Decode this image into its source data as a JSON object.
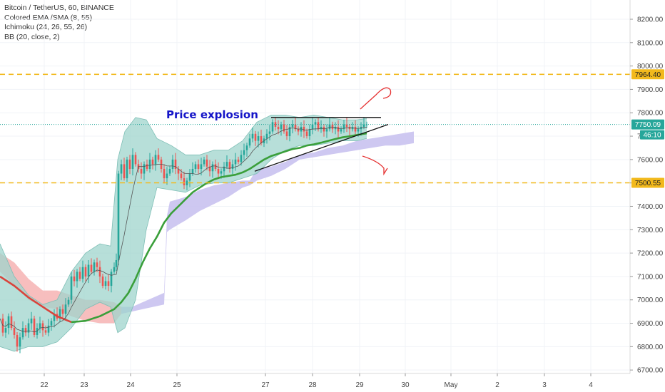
{
  "header": {
    "symbol": "Bitcoin / TetherUS, 60, BINANCE",
    "indicators": [
      "Colored EMA /SMA (8, 55)",
      "Ichimoku (24, 26, 55, 26)",
      "BB (20, close, 2)"
    ]
  },
  "annotation": {
    "text": "Price explosion"
  },
  "colors": {
    "bb_fill": "#9fd4cc",
    "cloud_bull": "#c9c2ef",
    "cloud_bear": "#f6b7b7",
    "ema_bull": "#3a9f3a",
    "ema_bear": "#d9443c",
    "candle_up": "#26a69a",
    "candle_down": "#ef5350",
    "level_line": "#f2b91c",
    "current_price": "#26a69a",
    "annotation": "#1414c8",
    "hand_drawn": "#e53030"
  },
  "chart_data": {
    "type": "candlestick",
    "symbol": "BTCUSDT",
    "timeframe": "60",
    "y_range": [
      6680,
      8260
    ],
    "y_ticks": [
      "8200.00",
      "8100.00",
      "8000.00",
      "7900.00",
      "7800.00",
      "7700.00",
      "7600.00",
      "7500.00",
      "7400.00",
      "7300.00",
      "7200.00",
      "7100.00",
      "7000.00",
      "6900.00",
      "6800.00",
      "6700.00"
    ],
    "x_ticks": [
      "22",
      "23",
      "24",
      "25",
      "27",
      "28",
      "29",
      "30",
      "May",
      "2",
      "3",
      "4"
    ],
    "horizontal_levels": [
      {
        "price": 7964.4,
        "label": "7964.40"
      },
      {
        "price": 7500.55,
        "label": "7500.55"
      }
    ],
    "current_price": {
      "price": 7750.09,
      "label": "7750.09",
      "countdown": "46:10"
    },
    "price_path": [
      [
        0,
        6920
      ],
      [
        4,
        6860
      ],
      [
        8,
        6880
      ],
      [
        12,
        6930
      ],
      [
        16,
        6880
      ],
      [
        20,
        6850
      ],
      [
        24,
        6800
      ],
      [
        28,
        6840
      ],
      [
        32,
        6880
      ],
      [
        36,
        6860
      ],
      [
        40,
        6900
      ],
      [
        44,
        6920
      ],
      [
        48,
        6850
      ],
      [
        52,
        6880
      ],
      [
        56,
        6900
      ],
      [
        60,
        6870
      ],
      [
        64,
        6860
      ],
      [
        68,
        6890
      ],
      [
        72,
        6910
      ],
      [
        76,
        6940
      ],
      [
        80,
        6920
      ],
      [
        84,
        6960
      ],
      [
        88,
        6940
      ],
      [
        92,
        6980
      ],
      [
        96,
        7000
      ],
      [
        100,
        7100
      ],
      [
        104,
        7080
      ],
      [
        108,
        7120
      ],
      [
        112,
        7090
      ],
      [
        116,
        7140
      ],
      [
        120,
        7100
      ],
      [
        124,
        7150
      ],
      [
        128,
        7120
      ],
      [
        132,
        7160
      ],
      [
        136,
        7140
      ],
      [
        140,
        7100
      ],
      [
        144,
        7060
      ],
      [
        148,
        7080
      ],
      [
        152,
        7060
      ],
      [
        156,
        7120
      ],
      [
        160,
        7140
      ],
      [
        163,
        7170
      ],
      [
        166,
        7540
      ],
      [
        170,
        7580
      ],
      [
        174,
        7520
      ],
      [
        178,
        7600
      ],
      [
        182,
        7560
      ],
      [
        186,
        7620
      ],
      [
        190,
        7580
      ],
      [
        194,
        7560
      ],
      [
        198,
        7540
      ],
      [
        202,
        7580
      ],
      [
        206,
        7560
      ],
      [
        210,
        7600
      ],
      [
        214,
        7580
      ],
      [
        218,
        7620
      ],
      [
        222,
        7600
      ],
      [
        226,
        7560
      ],
      [
        230,
        7520
      ],
      [
        234,
        7540
      ],
      [
        238,
        7560
      ],
      [
        242,
        7600
      ],
      [
        246,
        7560
      ],
      [
        250,
        7540
      ],
      [
        254,
        7520
      ],
      [
        258,
        7490
      ],
      [
        262,
        7510
      ],
      [
        266,
        7540
      ],
      [
        270,
        7560
      ],
      [
        274,
        7580
      ],
      [
        278,
        7560
      ],
      [
        282,
        7580
      ],
      [
        286,
        7600
      ],
      [
        290,
        7570
      ],
      [
        294,
        7550
      ],
      [
        298,
        7580
      ],
      [
        302,
        7560
      ],
      [
        306,
        7540
      ],
      [
        310,
        7550
      ],
      [
        314,
        7570
      ],
      [
        318,
        7590
      ],
      [
        322,
        7560
      ],
      [
        326,
        7580
      ],
      [
        330,
        7600
      ],
      [
        334,
        7590
      ],
      [
        338,
        7620
      ],
      [
        342,
        7640
      ],
      [
        346,
        7660
      ],
      [
        350,
        7690
      ],
      [
        354,
        7710
      ],
      [
        358,
        7680
      ],
      [
        362,
        7700
      ],
      [
        366,
        7670
      ],
      [
        370,
        7690
      ],
      [
        374,
        7710
      ],
      [
        378,
        7720
      ],
      [
        382,
        7760
      ],
      [
        386,
        7740
      ],
      [
        390,
        7730
      ],
      [
        394,
        7750
      ],
      [
        398,
        7720
      ],
      [
        402,
        7700
      ],
      [
        406,
        7740
      ],
      [
        410,
        7750
      ],
      [
        414,
        7730
      ],
      [
        418,
        7720
      ],
      [
        422,
        7740
      ],
      [
        426,
        7720
      ],
      [
        430,
        7700
      ],
      [
        434,
        7730
      ],
      [
        438,
        7750
      ],
      [
        442,
        7760
      ],
      [
        446,
        7730
      ],
      [
        450,
        7740
      ],
      [
        454,
        7720
      ],
      [
        458,
        7730
      ],
      [
        462,
        7750
      ],
      [
        466,
        7730
      ],
      [
        470,
        7740
      ],
      [
        474,
        7720
      ],
      [
        478,
        7730
      ],
      [
        482,
        7750
      ],
      [
        486,
        7740
      ],
      [
        490,
        7730
      ],
      [
        494,
        7740
      ],
      [
        498,
        7720
      ],
      [
        502,
        7730
      ],
      [
        506,
        7740
      ],
      [
        510,
        7750
      ],
      [
        514,
        7750
      ]
    ],
    "ema_path": [
      [
        0,
        7100
      ],
      [
        20,
        7060
      ],
      [
        40,
        7010
      ],
      [
        60,
        6970
      ],
      [
        80,
        6930
      ],
      [
        100,
        6905
      ],
      [
        120,
        6910
      ],
      [
        140,
        6930
      ],
      [
        160,
        6960
      ],
      [
        170,
        6990
      ],
      [
        180,
        7030
      ],
      [
        190,
        7090
      ],
      [
        200,
        7160
      ],
      [
        210,
        7220
      ],
      [
        220,
        7270
      ],
      [
        230,
        7330
      ],
      [
        240,
        7370
      ],
      [
        250,
        7400
      ],
      [
        260,
        7430
      ],
      [
        270,
        7460
      ],
      [
        280,
        7480
      ],
      [
        290,
        7500
      ],
      [
        300,
        7515
      ],
      [
        310,
        7525
      ],
      [
        320,
        7530
      ],
      [
        330,
        7535
      ],
      [
        340,
        7545
      ],
      [
        350,
        7560
      ],
      [
        360,
        7580
      ],
      [
        370,
        7600
      ],
      [
        380,
        7615
      ],
      [
        390,
        7625
      ],
      [
        400,
        7635
      ],
      [
        410,
        7645
      ],
      [
        420,
        7650
      ],
      [
        430,
        7660
      ],
      [
        440,
        7665
      ],
      [
        450,
        7672
      ],
      [
        460,
        7680
      ],
      [
        470,
        7688
      ],
      [
        480,
        7695
      ],
      [
        490,
        7700
      ],
      [
        500,
        7705
      ],
      [
        514,
        7712
      ]
    ],
    "ema_bear_until_x": 110,
    "bb_upper": [
      [
        0,
        7240
      ],
      [
        20,
        7100
      ],
      [
        40,
        7020
      ],
      [
        60,
        6980
      ],
      [
        80,
        7000
      ],
      [
        100,
        7120
      ],
      [
        120,
        7200
      ],
      [
        140,
        7240
      ],
      [
        155,
        7230
      ],
      [
        165,
        7600
      ],
      [
        175,
        7720
      ],
      [
        190,
        7780
      ],
      [
        205,
        7770
      ],
      [
        220,
        7690
      ],
      [
        240,
        7660
      ],
      [
        260,
        7620
      ],
      [
        280,
        7620
      ],
      [
        300,
        7640
      ],
      [
        320,
        7640
      ],
      [
        340,
        7680
      ],
      [
        360,
        7760
      ],
      [
        380,
        7790
      ],
      [
        400,
        7790
      ],
      [
        420,
        7780
      ],
      [
        440,
        7790
      ],
      [
        460,
        7780
      ],
      [
        480,
        7770
      ],
      [
        500,
        7770
      ],
      [
        514,
        7775
      ]
    ],
    "bb_lower": [
      [
        0,
        6800
      ],
      [
        20,
        6780
      ],
      [
        40,
        6800
      ],
      [
        60,
        6800
      ],
      [
        80,
        6820
      ],
      [
        100,
        6880
      ],
      [
        120,
        6960
      ],
      [
        140,
        6990
      ],
      [
        155,
        6970
      ],
      [
        165,
        6860
      ],
      [
        175,
        6880
      ],
      [
        190,
        7000
      ],
      [
        205,
        7300
      ],
      [
        220,
        7480
      ],
      [
        240,
        7470
      ],
      [
        260,
        7460
      ],
      [
        280,
        7490
      ],
      [
        300,
        7500
      ],
      [
        320,
        7500
      ],
      [
        340,
        7520
      ],
      [
        360,
        7540
      ],
      [
        380,
        7600
      ],
      [
        400,
        7640
      ],
      [
        420,
        7660
      ],
      [
        440,
        7660
      ],
      [
        460,
        7670
      ],
      [
        480,
        7680
      ],
      [
        500,
        7680
      ],
      [
        514,
        7690
      ]
    ],
    "cloud_bull_upper": [
      [
        170,
        6970
      ],
      [
        185,
        6970
      ],
      [
        200,
        6990
      ],
      [
        230,
        7030
      ],
      [
        234,
        7360
      ],
      [
        238,
        7420
      ],
      [
        260,
        7440
      ],
      [
        280,
        7470
      ],
      [
        300,
        7490
      ],
      [
        320,
        7500
      ],
      [
        340,
        7510
      ],
      [
        350,
        7510
      ],
      [
        360,
        7560
      ],
      [
        380,
        7570
      ],
      [
        400,
        7590
      ],
      [
        420,
        7620
      ],
      [
        440,
        7630
      ],
      [
        460,
        7650
      ],
      [
        480,
        7660
      ],
      [
        500,
        7680
      ],
      [
        520,
        7690
      ],
      [
        540,
        7700
      ],
      [
        560,
        7710
      ],
      [
        580,
        7720
      ]
    ],
    "cloud_bull_lower": [
      [
        170,
        6940
      ],
      [
        185,
        6950
      ],
      [
        200,
        6960
      ],
      [
        230,
        6980
      ],
      [
        234,
        7290
      ],
      [
        238,
        7300
      ],
      [
        260,
        7340
      ],
      [
        280,
        7380
      ],
      [
        300,
        7410
      ],
      [
        320,
        7440
      ],
      [
        340,
        7480
      ],
      [
        350,
        7490
      ],
      [
        360,
        7510
      ],
      [
        380,
        7530
      ],
      [
        400,
        7560
      ],
      [
        420,
        7600
      ],
      [
        440,
        7610
      ],
      [
        460,
        7620
      ],
      [
        480,
        7630
      ],
      [
        500,
        7640
      ],
      [
        520,
        7650
      ],
      [
        540,
        7660
      ],
      [
        560,
        7660
      ],
      [
        580,
        7670
      ]
    ],
    "cloud_bear_upper": [
      [
        0,
        7200
      ],
      [
        20,
        7160
      ],
      [
        40,
        7090
      ],
      [
        60,
        7040
      ],
      [
        80,
        7040
      ],
      [
        100,
        7020
      ],
      [
        120,
        7000
      ],
      [
        140,
        7000
      ],
      [
        160,
        6990
      ],
      [
        170,
        6970
      ]
    ],
    "cloud_bear_lower": [
      [
        0,
        7120
      ],
      [
        20,
        7060
      ],
      [
        40,
        7000
      ],
      [
        60,
        6970
      ],
      [
        80,
        6960
      ],
      [
        100,
        6930
      ],
      [
        120,
        6910
      ],
      [
        140,
        6900
      ],
      [
        160,
        6900
      ],
      [
        170,
        6940
      ]
    ],
    "drawings": [
      {
        "kind": "resistance",
        "from": [
          380,
          7780
        ],
        "to": [
          534,
          7780
        ]
      },
      {
        "kind": "support",
        "from": [
          357,
          7550
        ],
        "to": [
          544,
          7750
        ]
      }
    ]
  }
}
